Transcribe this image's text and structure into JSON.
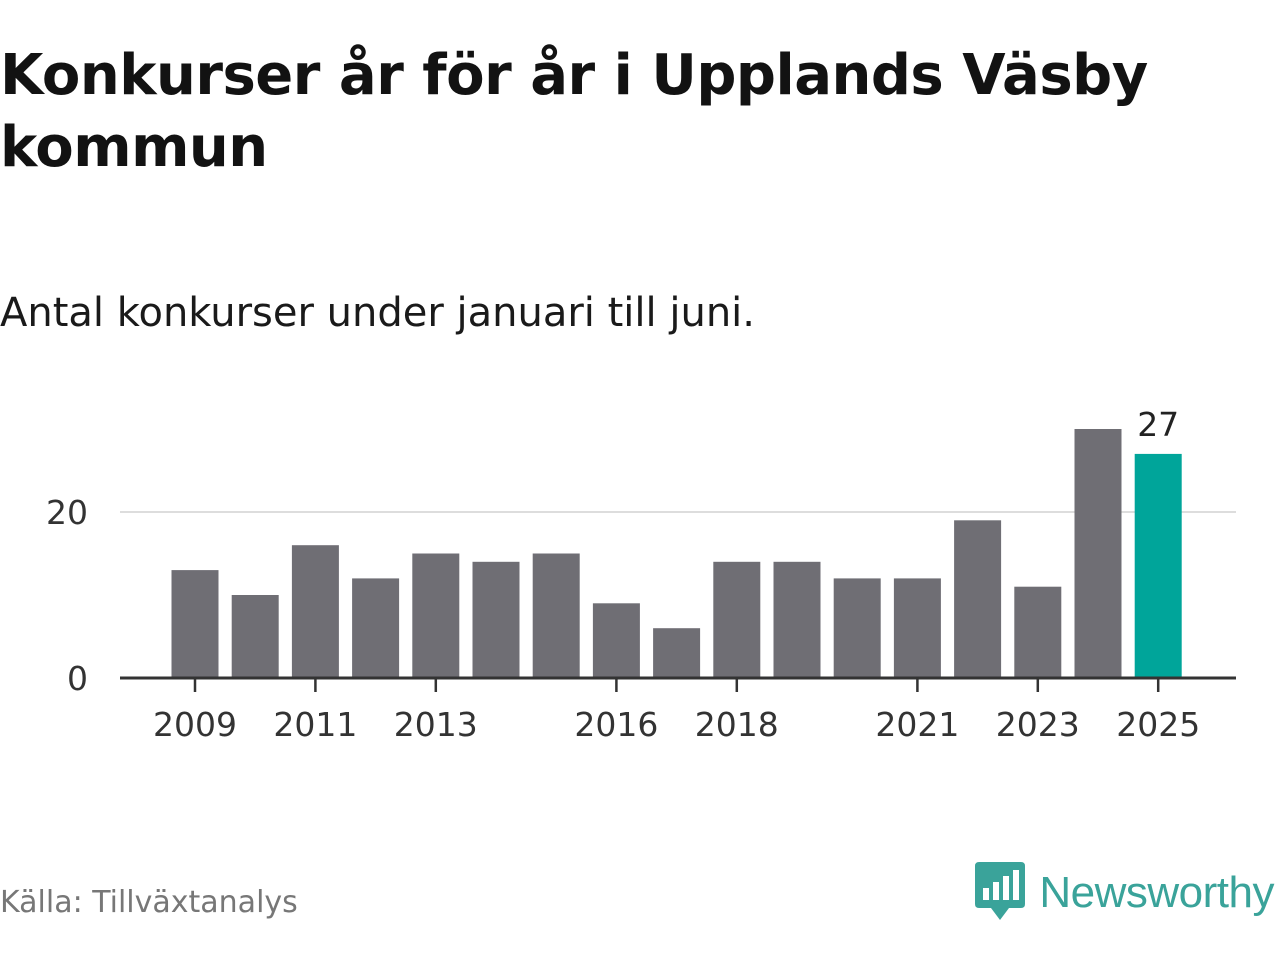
{
  "title": "Konkurser år för år i Upplands Väsby kommun",
  "subtitle": "Antal konkurser under januari till juni.",
  "source": "Källa: Tillväxtanalys",
  "brand": {
    "name": "Newsworthy",
    "icon": "newsworthy-logo-icon",
    "color": "#3aa39a"
  },
  "colors": {
    "bar": "#6f6e74",
    "highlight": "#00a59a",
    "grid": "#dddddd",
    "axis": "#333333"
  },
  "chart_data": {
    "type": "bar",
    "categories": [
      "2009",
      "2010",
      "2011",
      "2012",
      "2013",
      "2014",
      "2015",
      "2016",
      "2017",
      "2018",
      "2019",
      "2020",
      "2021",
      "2022",
      "2023",
      "2024",
      "2025"
    ],
    "values": [
      13,
      10,
      16,
      12,
      15,
      14,
      15,
      9,
      6,
      14,
      14,
      12,
      12,
      19,
      11,
      30,
      27
    ],
    "highlight": "2025",
    "x_tick_labels": [
      "2009",
      "2011",
      "2013",
      "2016",
      "2018",
      "2021",
      "2023",
      "2025"
    ],
    "y_ticks": [
      0,
      20
    ],
    "ylim": [
      0,
      32
    ],
    "data_labels": [
      {
        "category": "2025",
        "text": "27"
      }
    ],
    "grid": true,
    "title": "Konkurser år för år i Upplands Väsby kommun",
    "subtitle": "Antal konkurser under januari till juni.",
    "xlabel": "",
    "ylabel": ""
  }
}
